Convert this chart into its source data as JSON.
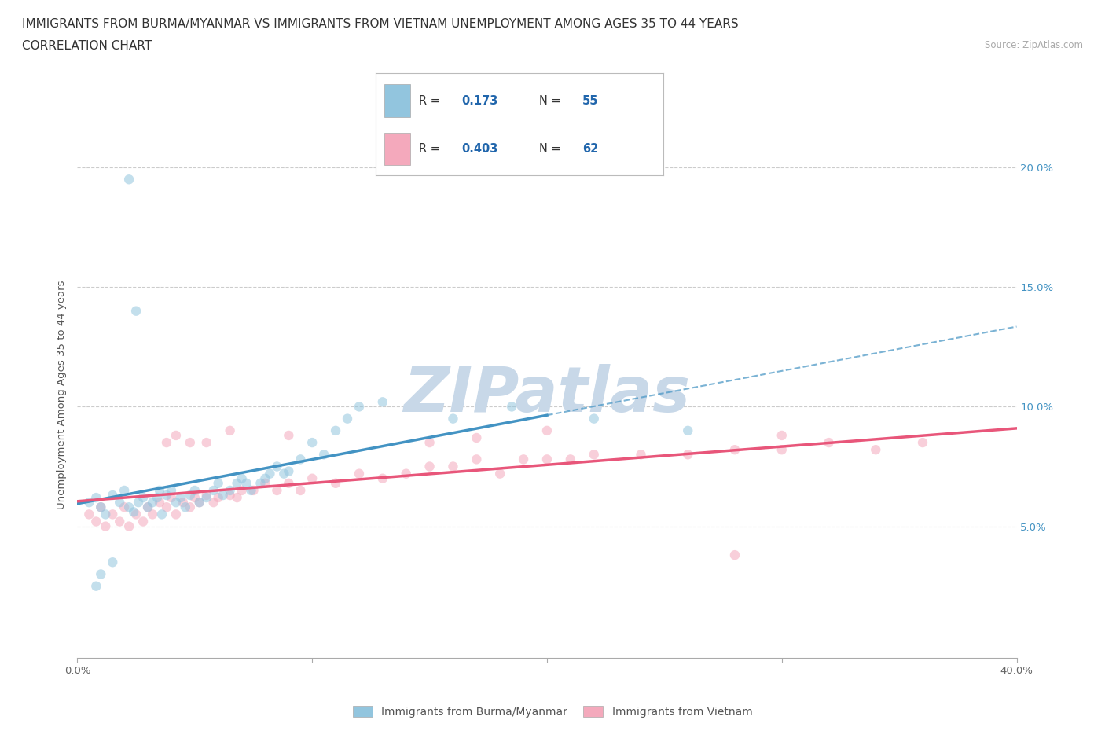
{
  "title_line1": "IMMIGRANTS FROM BURMA/MYANMAR VS IMMIGRANTS FROM VIETNAM UNEMPLOYMENT AMONG AGES 35 TO 44 YEARS",
  "title_line2": "CORRELATION CHART",
  "source_text": "Source: ZipAtlas.com",
  "ylabel": "Unemployment Among Ages 35 to 44 years",
  "xlim": [
    0.0,
    0.4
  ],
  "ylim": [
    -0.005,
    0.215
  ],
  "ytick_positions": [
    0.0,
    0.05,
    0.1,
    0.15,
    0.2
  ],
  "ytick_labels": [
    "",
    "5.0%",
    "10.0%",
    "15.0%",
    "20.0%"
  ],
  "xtick_positions": [
    0.0,
    0.1,
    0.2,
    0.3,
    0.4
  ],
  "xticklabels": [
    "0.0%",
    "",
    "",
    "",
    "40.0%"
  ],
  "watermark": "ZIPatlas",
  "legend_val1": "0.173",
  "legend_n1": "55",
  "legend_val2": "0.403",
  "legend_n2": "62",
  "color_burma": "#92c5de",
  "color_vietnam": "#f4a9bc",
  "color_burma_line": "#4393c3",
  "color_vietnam_line": "#e8567a",
  "burma_scatter_x": [
    0.005,
    0.008,
    0.01,
    0.012,
    0.015,
    0.018,
    0.02,
    0.022,
    0.024,
    0.026,
    0.028,
    0.03,
    0.032,
    0.034,
    0.035,
    0.036,
    0.038,
    0.04,
    0.042,
    0.044,
    0.046,
    0.048,
    0.05,
    0.052,
    0.055,
    0.058,
    0.06,
    0.062,
    0.065,
    0.068,
    0.07,
    0.072,
    0.074,
    0.078,
    0.08,
    0.082,
    0.085,
    0.088,
    0.09,
    0.095,
    0.1,
    0.105,
    0.11,
    0.115,
    0.12,
    0.13,
    0.16,
    0.185,
    0.22,
    0.26,
    0.022,
    0.025,
    0.015,
    0.01,
    0.008
  ],
  "burma_scatter_y": [
    0.06,
    0.062,
    0.058,
    0.055,
    0.063,
    0.06,
    0.065,
    0.058,
    0.056,
    0.06,
    0.062,
    0.058,
    0.06,
    0.062,
    0.065,
    0.055,
    0.063,
    0.065,
    0.06,
    0.062,
    0.058,
    0.063,
    0.065,
    0.06,
    0.062,
    0.065,
    0.068,
    0.063,
    0.065,
    0.068,
    0.07,
    0.068,
    0.065,
    0.068,
    0.07,
    0.072,
    0.075,
    0.072,
    0.073,
    0.078,
    0.085,
    0.08,
    0.09,
    0.095,
    0.1,
    0.102,
    0.095,
    0.1,
    0.095,
    0.09,
    0.195,
    0.14,
    0.035,
    0.03,
    0.025
  ],
  "vietnam_scatter_x": [
    0.005,
    0.008,
    0.01,
    0.012,
    0.015,
    0.018,
    0.02,
    0.022,
    0.025,
    0.028,
    0.03,
    0.032,
    0.035,
    0.038,
    0.04,
    0.042,
    0.045,
    0.048,
    0.05,
    0.052,
    0.055,
    0.058,
    0.06,
    0.065,
    0.068,
    0.07,
    0.075,
    0.08,
    0.085,
    0.09,
    0.095,
    0.1,
    0.11,
    0.12,
    0.13,
    0.14,
    0.15,
    0.16,
    0.17,
    0.18,
    0.19,
    0.2,
    0.21,
    0.22,
    0.24,
    0.26,
    0.28,
    0.3,
    0.32,
    0.34,
    0.36,
    0.038,
    0.042,
    0.048,
    0.055,
    0.065,
    0.09,
    0.15,
    0.17,
    0.2,
    0.28,
    0.3
  ],
  "vietnam_scatter_y": [
    0.055,
    0.052,
    0.058,
    0.05,
    0.055,
    0.052,
    0.058,
    0.05,
    0.055,
    0.052,
    0.058,
    0.055,
    0.06,
    0.058,
    0.062,
    0.055,
    0.06,
    0.058,
    0.062,
    0.06,
    0.063,
    0.06,
    0.062,
    0.063,
    0.062,
    0.065,
    0.065,
    0.068,
    0.065,
    0.068,
    0.065,
    0.07,
    0.068,
    0.072,
    0.07,
    0.072,
    0.075,
    0.075,
    0.078,
    0.072,
    0.078,
    0.078,
    0.078,
    0.08,
    0.08,
    0.08,
    0.082,
    0.082,
    0.085,
    0.082,
    0.085,
    0.085,
    0.088,
    0.085,
    0.085,
    0.09,
    0.088,
    0.085,
    0.087,
    0.09,
    0.038,
    0.088
  ],
  "grid_color": "#cccccc",
  "bg_color": "#ffffff",
  "title_fontsize": 11,
  "tick_fontsize": 9.5,
  "watermark_color": "#c8d8e8",
  "scatter_alpha": 0.55,
  "scatter_size": 80
}
